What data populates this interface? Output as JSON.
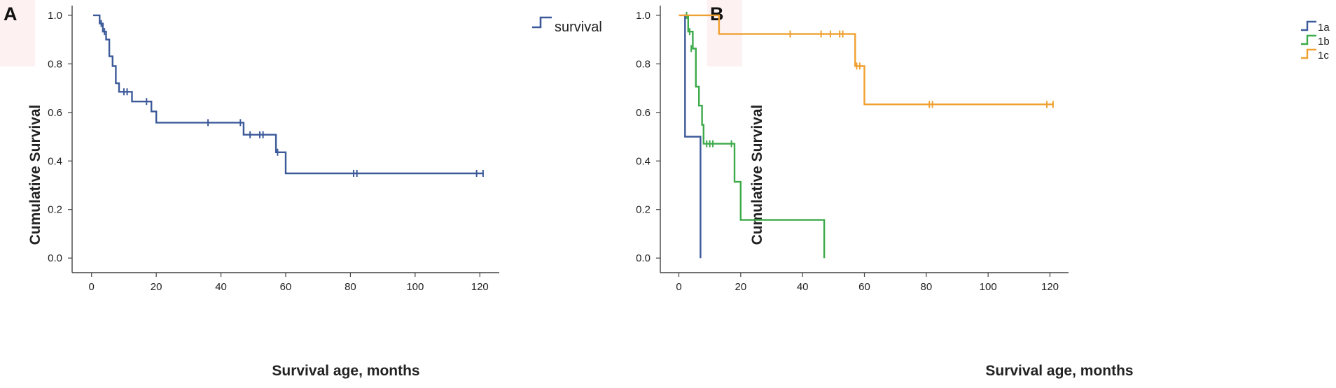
{
  "chart_data": [
    {
      "type": "line",
      "panel_label": "A",
      "title": "",
      "xlabel": "Survival age, months",
      "ylabel": "Cumulative Survival",
      "xlim": [
        -6,
        126
      ],
      "ylim": [
        -0.06,
        1.04
      ],
      "xticks": [
        0,
        20,
        40,
        60,
        80,
        100,
        120
      ],
      "yticks": [
        0.0,
        0.2,
        0.4,
        0.6,
        0.8,
        1.0
      ],
      "xtick_labels": [
        "0",
        "20",
        "40",
        "60",
        "80",
        "100",
        "120"
      ],
      "ytick_labels": [
        "0.0",
        "0.2",
        "0.4",
        "0.6",
        "0.8",
        "1.0"
      ],
      "legend_position": "top-right",
      "series": [
        {
          "name": "survival",
          "color": "#3c5a9a",
          "steps": [
            [
              0.5,
              1.0
            ],
            [
              2.5,
              0.966
            ],
            [
              3.5,
              0.933
            ],
            [
              4.5,
              0.9
            ],
            [
              5.5,
              0.831
            ],
            [
              6.5,
              0.791
            ],
            [
              7.5,
              0.72
            ],
            [
              8.5,
              0.685
            ],
            [
              12.5,
              0.645
            ],
            [
              18.5,
              0.604
            ],
            [
              20,
              0.558
            ],
            [
              47,
              0.508
            ],
            [
              57,
              0.436
            ],
            [
              60,
              0.349
            ],
            [
              121,
              0.349
            ]
          ],
          "censored": [
            [
              3,
              0.966
            ],
            [
              4,
              0.933
            ],
            [
              10,
              0.685
            ],
            [
              11,
              0.685
            ],
            [
              17,
              0.645
            ],
            [
              36,
              0.558
            ],
            [
              46,
              0.558
            ],
            [
              49,
              0.508
            ],
            [
              52,
              0.508
            ],
            [
              53,
              0.508
            ],
            [
              57.5,
              0.436
            ],
            [
              81,
              0.349
            ],
            [
              82,
              0.349
            ],
            [
              119,
              0.349
            ],
            [
              121,
              0.349
            ]
          ]
        }
      ]
    },
    {
      "type": "line",
      "panel_label": "B",
      "title": "",
      "xlabel": "Survival age, months",
      "ylabel": "Cumulative Survival",
      "xlim": [
        -6,
        126
      ],
      "ylim": [
        -0.06,
        1.04
      ],
      "xticks": [
        0,
        20,
        40,
        60,
        80,
        100,
        120
      ],
      "yticks": [
        0.0,
        0.2,
        0.4,
        0.6,
        0.8,
        1.0
      ],
      "xtick_labels": [
        "0",
        "20",
        "40",
        "60",
        "80",
        "100",
        "120"
      ],
      "ytick_labels": [
        "0.0",
        "0.2",
        "0.4",
        "0.6",
        "0.8",
        "1.0"
      ],
      "legend_position": "top-right",
      "series": [
        {
          "name": "1a",
          "color": "#3c5a9a",
          "steps": [
            [
              1.5,
              1.0
            ],
            [
              2,
              0.5
            ],
            [
              7,
              0.5
            ],
            [
              7,
              0.0
            ]
          ],
          "censored": []
        },
        {
          "name": "1b",
          "color": "#3daa4a",
          "steps": [
            [
              2,
              1.0
            ],
            [
              3,
              0.933
            ],
            [
              4.5,
              0.863
            ],
            [
              5.5,
              0.706
            ],
            [
              6.5,
              0.628
            ],
            [
              7.5,
              0.549
            ],
            [
              8,
              0.471
            ],
            [
              18,
              0.471
            ],
            [
              18,
              0.314
            ],
            [
              20,
              0.314
            ],
            [
              20,
              0.157
            ],
            [
              47,
              0.157
            ],
            [
              47,
              0.0
            ]
          ],
          "censored": [
            [
              2.5,
              1.0
            ],
            [
              3.5,
              0.933
            ],
            [
              4,
              0.863
            ],
            [
              9,
              0.471
            ],
            [
              10,
              0.471
            ],
            [
              11,
              0.471
            ],
            [
              17,
              0.471
            ]
          ]
        },
        {
          "name": "1c",
          "color": "#f0a030",
          "steps": [
            [
              0,
              1.0
            ],
            [
              13,
              0.923
            ],
            [
              57,
              0.923
            ],
            [
              57,
              0.791
            ],
            [
              60,
              0.791
            ],
            [
              60,
              0.633
            ],
            [
              121,
              0.633
            ]
          ],
          "censored": [
            [
              36,
              0.923
            ],
            [
              46,
              0.923
            ],
            [
              49,
              0.923
            ],
            [
              52,
              0.923
            ],
            [
              53,
              0.923
            ],
            [
              57.5,
              0.791
            ],
            [
              58.5,
              0.791
            ],
            [
              81,
              0.633
            ],
            [
              82,
              0.633
            ],
            [
              119,
              0.633
            ],
            [
              121,
              0.633
            ]
          ]
        }
      ]
    }
  ]
}
